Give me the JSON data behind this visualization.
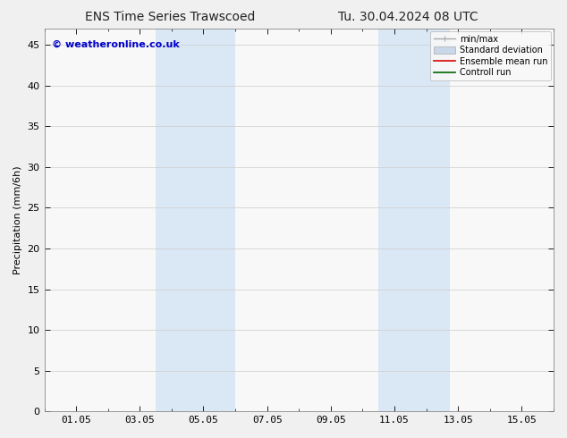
{
  "title_left": "ENS Time Series Trawscoed",
  "title_right": "Tu. 30.04.2024 08 UTC",
  "ylabel": "Precipitation (mm/6h)",
  "ylim": [
    0,
    47
  ],
  "yticks": [
    0,
    5,
    10,
    15,
    20,
    25,
    30,
    35,
    40,
    45
  ],
  "xlim": [
    0.0,
    16.0
  ],
  "xtick_labels": [
    "01.05",
    "03.05",
    "05.05",
    "07.05",
    "09.05",
    "11.05",
    "13.05",
    "15.05"
  ],
  "xtick_positions": [
    1,
    3,
    5,
    7,
    9,
    11,
    13,
    15
  ],
  "shaded_bands": [
    {
      "x_start": 3.5,
      "x_end": 4.75,
      "color": "#dae8f5"
    },
    {
      "x_start": 4.75,
      "x_end": 6.0,
      "color": "#dae8f5"
    },
    {
      "x_start": 10.5,
      "x_end": 11.5,
      "color": "#dae8f5"
    },
    {
      "x_start": 11.5,
      "x_end": 12.75,
      "color": "#dae8f5"
    }
  ],
  "copyright_text": "© weatheronline.co.uk",
  "copyright_color": "#0000cc",
  "legend_items": [
    {
      "label": "min/max",
      "color": "#aaaaaa",
      "lw": 1.0,
      "style": "minmax"
    },
    {
      "label": "Standard deviation",
      "color": "#c8d8e8",
      "lw": 6,
      "style": "fill"
    },
    {
      "label": "Ensemble mean run",
      "color": "#dd0000",
      "lw": 1.2,
      "style": "line"
    },
    {
      "label": "Controll run",
      "color": "#006600",
      "lw": 1.2,
      "style": "line"
    }
  ],
  "plot_bg_color": "#f8f8f8",
  "fig_bg_color": "#f0f0f0",
  "title_fontsize": 10,
  "axis_label_fontsize": 8,
  "tick_fontsize": 8,
  "copyright_fontsize": 8
}
